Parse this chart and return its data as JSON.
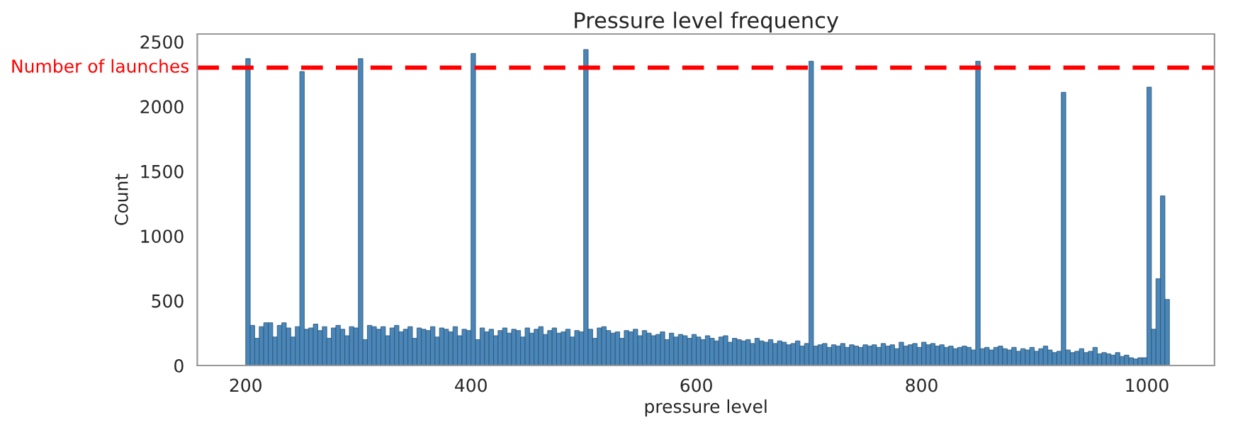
{
  "chart_data": {
    "type": "histogram",
    "title": "Pressure level frequency",
    "xlabel": "pressure level",
    "ylabel": "Count",
    "color": "#4a86b8",
    "bins": [
      200,
      204,
      208,
      212,
      216,
      220,
      224,
      228,
      232,
      236,
      240,
      244,
      248,
      252,
      256,
      260,
      264,
      268,
      272,
      276,
      280,
      284,
      288,
      292,
      296,
      300,
      304,
      308,
      312,
      316,
      320,
      324,
      328,
      332,
      336,
      340,
      344,
      348,
      352,
      356,
      360,
      364,
      368,
      372,
      376,
      380,
      384,
      388,
      392,
      396,
      400,
      404,
      408,
      412,
      416,
      420,
      424,
      428,
      432,
      436,
      440,
      444,
      448,
      452,
      456,
      460,
      464,
      468,
      472,
      476,
      480,
      484,
      488,
      492,
      496,
      500,
      504,
      508,
      512,
      516,
      520,
      524,
      528,
      532,
      536,
      540,
      544,
      548,
      552,
      556,
      560,
      564,
      568,
      572,
      576,
      580,
      584,
      588,
      592,
      596,
      600,
      604,
      608,
      612,
      616,
      620,
      624,
      628,
      632,
      636,
      640,
      644,
      648,
      652,
      656,
      660,
      664,
      668,
      672,
      676,
      680,
      684,
      688,
      692,
      696,
      700,
      704,
      708,
      712,
      716,
      720,
      724,
      728,
      732,
      736,
      740,
      744,
      748,
      752,
      756,
      760,
      764,
      768,
      772,
      776,
      780,
      784,
      788,
      792,
      796,
      800,
      804,
      808,
      812,
      816,
      820,
      824,
      828,
      832,
      836,
      840,
      844,
      848,
      852,
      856,
      860,
      864,
      868,
      872,
      876,
      880,
      884,
      888,
      892,
      896,
      900,
      904,
      908,
      912,
      916,
      920,
      924,
      928,
      932,
      936,
      940,
      944,
      948,
      952,
      956,
      960,
      964,
      968,
      972,
      976,
      980,
      984,
      988,
      992,
      996,
      1000,
      1004,
      1008,
      1012,
      1016,
      1020
    ],
    "values": [
      2370,
      310,
      210,
      300,
      330,
      330,
      220,
      310,
      330,
      290,
      220,
      300,
      2270,
      280,
      290,
      320,
      270,
      300,
      210,
      290,
      310,
      280,
      230,
      300,
      290,
      2370,
      200,
      310,
      300,
      280,
      300,
      230,
      290,
      310,
      260,
      280,
      300,
      210,
      290,
      280,
      270,
      300,
      220,
      290,
      280,
      260,
      300,
      230,
      280,
      270,
      2410,
      200,
      290,
      260,
      280,
      230,
      270,
      290,
      250,
      280,
      270,
      220,
      290,
      250,
      280,
      300,
      240,
      270,
      290,
      250,
      260,
      280,
      220,
      270,
      260,
      2440,
      280,
      210,
      290,
      300,
      270,
      250,
      260,
      210,
      270,
      260,
      280,
      230,
      270,
      250,
      230,
      240,
      260,
      200,
      250,
      220,
      240,
      230,
      210,
      240,
      220,
      200,
      230,
      210,
      190,
      220,
      230,
      180,
      210,
      200,
      190,
      200,
      170,
      210,
      190,
      180,
      200,
      170,
      190,
      180,
      160,
      170,
      190,
      150,
      170,
      2350,
      150,
      160,
      170,
      140,
      160,
      150,
      170,
      140,
      160,
      150,
      140,
      160,
      150,
      160,
      140,
      170,
      150,
      160,
      130,
      180,
      150,
      160,
      170,
      140,
      180,
      160,
      170,
      150,
      160,
      140,
      150,
      130,
      140,
      150,
      140,
      120,
      2350,
      130,
      140,
      120,
      140,
      150,
      130,
      120,
      140,
      110,
      130,
      120,
      140,
      110,
      130,
      150,
      120,
      100,
      110,
      2110,
      120,
      100,
      110,
      130,
      100,
      110,
      140,
      90,
      100,
      90,
      80,
      100,
      70,
      80,
      60,
      50,
      60,
      60,
      2150,
      280,
      670,
      1310,
      510
    ],
    "xlim": [
      157,
      1060
    ],
    "ylim": [
      0,
      2560
    ],
    "xticks": [
      200,
      400,
      600,
      800,
      1000
    ],
    "yticks": [
      0,
      500,
      1000,
      1500,
      2000,
      2500
    ],
    "ref_lines": [
      {
        "axis": "y",
        "value": 2300,
        "label": "Number of launches",
        "color": "#ff0000",
        "line_style": "dashed"
      }
    ],
    "grid": false
  }
}
